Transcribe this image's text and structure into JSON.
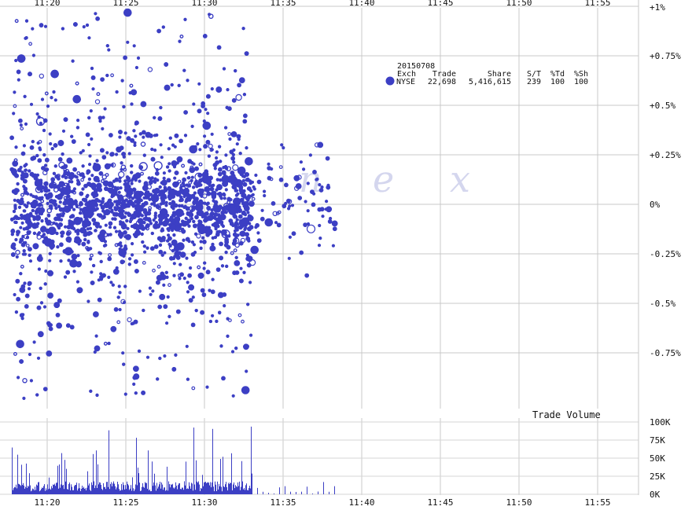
{
  "chart_data": {
    "type": "scatter",
    "date": "20150708",
    "x_ticks": [
      "11:20",
      "11:25",
      "11:30",
      "11:35",
      "11:40",
      "11:45",
      "11:50",
      "11:55"
    ],
    "x_range": [
      "11:17:45",
      "11:57:30"
    ],
    "y_ticks": [
      "+1%",
      "+0.75%",
      "+0.5%",
      "+0.25%",
      "0%",
      "-0.25%",
      "-0.5%",
      "-0.75%"
    ],
    "y_range_pct": [
      -1.0,
      1.0
    ],
    "volume_title": "Trade Volume",
    "volume_ticks": [
      "100K",
      "75K",
      "50K",
      "25K",
      "0K"
    ],
    "volume_range": [
      0,
      100000
    ],
    "watermark": [
      "n",
      "e",
      "x"
    ],
    "legend": {
      "headers": [
        "Exch",
        "Trade",
        "Share",
        "S/T",
        "%Td",
        "%Sh"
      ],
      "rows": [
        {
          "exch": "NYSE",
          "trade": "22,698",
          "share": "5,416,615",
          "st": "239",
          "td": "100",
          "sh": "100"
        }
      ]
    },
    "series": [
      {
        "exchange": "NYSE",
        "color": "#3c3fc4",
        "first_trade": "11:17:45",
        "last_trade": "11:38:20"
      }
    ],
    "grid": true
  }
}
